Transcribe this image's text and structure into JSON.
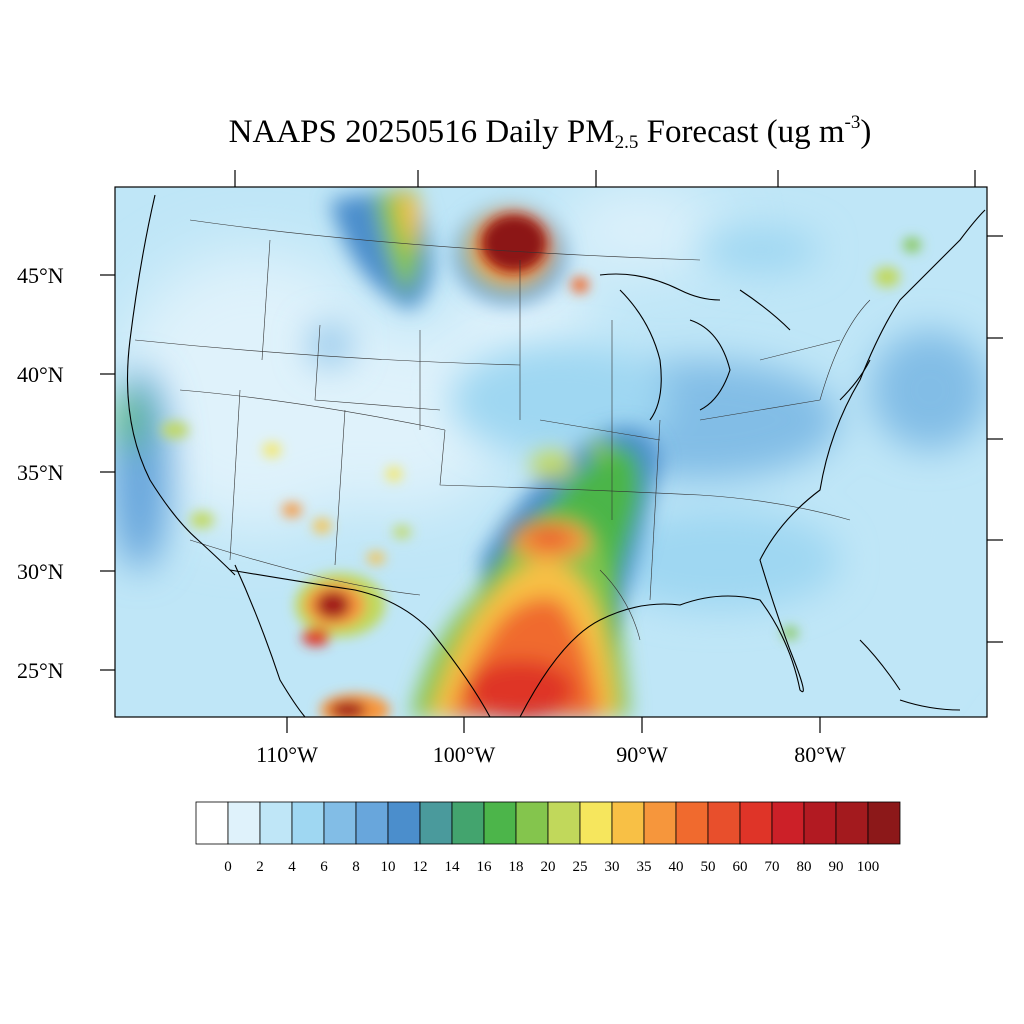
{
  "title": {
    "prefix": "NAAPS 20250516 Daily PM",
    "sub": "2.5",
    "middle": " Forecast (ug m",
    "sup": "-3",
    "suffix": ")"
  },
  "map": {
    "projection": "lambert-conformal",
    "lat_labels": [
      "25°N",
      "30°N",
      "35°N",
      "40°N",
      "45°N"
    ],
    "lon_labels": [
      "110°W",
      "100°W",
      "90°W",
      "80°W"
    ],
    "state_borders": true,
    "coastlines": true
  },
  "colorbar": {
    "labels": [
      "0",
      "2",
      "4",
      "6",
      "8",
      "10",
      "12",
      "14",
      "16",
      "18",
      "20",
      "25",
      "30",
      "35",
      "40",
      "50",
      "60",
      "70",
      "80",
      "90",
      "100"
    ],
    "colors": [
      "#ffffff",
      "#dff2fb",
      "#bfe6f7",
      "#9fd7f2",
      "#82bde6",
      "#68a6dc",
      "#4b8ecc",
      "#4a9a9c",
      "#43a46e",
      "#4cb54a",
      "#84c54d",
      "#c1d85b",
      "#f6e65d",
      "#f8c045",
      "#f6963c",
      "#f06a2e",
      "#e84f2c",
      "#df3428",
      "#cc2028",
      "#b21a22",
      "#a31a1e",
      "#8c1819"
    ]
  },
  "plumes": [
    {
      "name": "manitoba-ontario-smoke",
      "level": 100
    },
    {
      "name": "west-texas-mexico-smoke",
      "level": 90
    },
    {
      "name": "gulf-texas-smoke",
      "level": 70
    },
    {
      "name": "saskatchewan-smoke-arc",
      "level": 30
    },
    {
      "name": "mississippi-valley-smoke",
      "level": 18
    },
    {
      "name": "nova-scotia-smoke",
      "level": 25
    }
  ]
}
